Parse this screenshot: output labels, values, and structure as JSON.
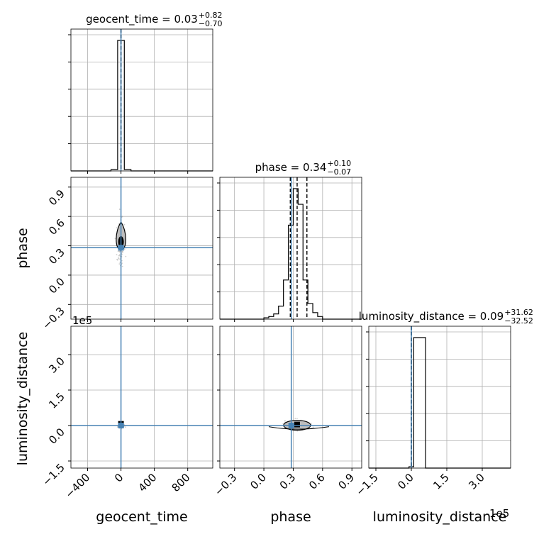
{
  "chart_data": {
    "type": "corner",
    "parameters": [
      "geocent_time",
      "phase",
      "luminosity_distance"
    ],
    "axis_labels": [
      "geocent_time",
      "phase",
      "luminosity_distance"
    ],
    "ranges": {
      "geocent_time": [
        -600,
        1100
      ],
      "phase": [
        -0.45,
        1.0
      ],
      "luminosity_distance": [
        -180000,
        420000
      ]
    },
    "ticks": {
      "geocent_time": {
        "values": [
          -400,
          0,
          400,
          800
        ],
        "labels": [
          "−400",
          "0",
          "400",
          "800"
        ]
      },
      "phase": {
        "values": [
          -0.3,
          0.0,
          0.3,
          0.6,
          0.9
        ],
        "labels": [
          "−0.3",
          "0.0",
          "0.3",
          "0.6",
          "0.9"
        ]
      },
      "luminosity_distance": {
        "values": [
          -150000,
          0,
          150000,
          300000
        ],
        "labels": [
          "−1.5",
          "0.0",
          "1.5",
          "3.0"
        ]
      }
    },
    "offset_label": "1e5",
    "truths": {
      "geocent_time": 0,
      "phase": 0.28,
      "luminosity_distance": 0
    },
    "titles": [
      {
        "param": "geocent_time",
        "main": "geocent_time = 0.03",
        "plus": "+0.82",
        "minus": "−0.70"
      },
      {
        "param": "phase",
        "main": "phase = 0.34",
        "plus": "+0.10",
        "minus": "−0.07"
      },
      {
        "param": "luminosity_distance",
        "main": "luminosity_distance = 0.09",
        "plus": "+31.62",
        "minus": "−32.52"
      }
    ],
    "quantiles": {
      "geocent_time": [
        -0.67,
        0.03,
        0.85
      ],
      "phase": [
        0.27,
        0.34,
        0.44
      ],
      "luminosity_distance": [
        -32.43,
        0.09,
        31.71
      ]
    },
    "histograms": {
      "geocent_time": {
        "edges": [
          -600,
          -520,
          -440,
          -360,
          -280,
          -200,
          -120,
          -40,
          40,
          120,
          200,
          280,
          360,
          440,
          520,
          600,
          680,
          760,
          840,
          920,
          1000,
          1100
        ],
        "counts": [
          0,
          0,
          0,
          0,
          0,
          0,
          0.01,
          1.0,
          0.01,
          0,
          0,
          0,
          0,
          0,
          0,
          0,
          0,
          0,
          0,
          0,
          0
        ]
      },
      "phase": {
        "edges": [
          -0.45,
          -0.3,
          -0.15,
          0.0,
          0.05,
          0.1,
          0.15,
          0.2,
          0.25,
          0.3,
          0.35,
          0.4,
          0.45,
          0.5,
          0.55,
          0.6,
          0.7,
          0.8,
          0.9,
          1.0
        ],
        "counts": [
          0,
          0,
          0,
          0.01,
          0.02,
          0.04,
          0.1,
          0.3,
          0.72,
          1.0,
          0.88,
          0.3,
          0.12,
          0.05,
          0.02,
          0.0,
          0.0,
          0.0,
          0
        ]
      },
      "luminosity_distance": {
        "edges": [
          -180000,
          -120000,
          -60000,
          -10000,
          10000,
          60000,
          120000,
          180000,
          240000,
          300000,
          360000,
          420000
        ],
        "counts": [
          0,
          0,
          0,
          0.01,
          1.0,
          0,
          0,
          0,
          0,
          0,
          0
        ]
      }
    },
    "pairs": [
      {
        "x": "geocent_time",
        "y": "phase",
        "center": [
          0,
          0.34
        ]
      },
      {
        "x": "geocent_time",
        "y": "luminosity_distance",
        "center": [
          0,
          1000
        ]
      },
      {
        "x": "phase",
        "y": "luminosity_distance",
        "center": [
          0.34,
          1000
        ]
      }
    ],
    "colors": {
      "truth": "#4682b4",
      "hist": "#000000",
      "grid": "#b0b0b0",
      "points": "#9e9e9e"
    },
    "grid": true
  }
}
